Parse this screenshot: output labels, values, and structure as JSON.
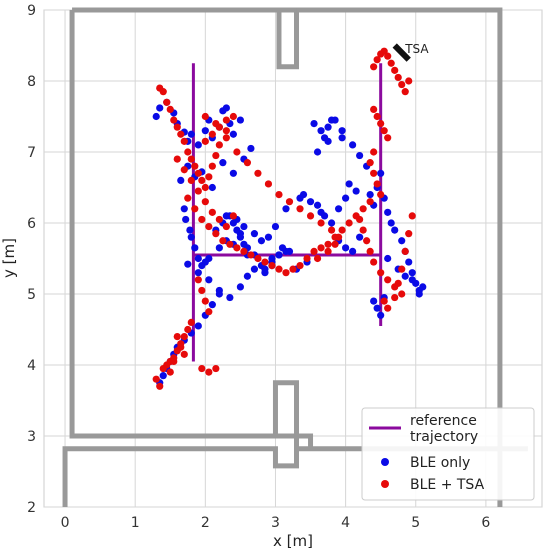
{
  "chart_data": {
    "type": "scatter",
    "title": "",
    "xlabel": "x [m]",
    "ylabel": "y [m]",
    "xlim": [
      -0.3,
      6.8
    ],
    "ylim": [
      2,
      9
    ],
    "xticks": [
      0,
      1,
      2,
      3,
      4,
      5,
      6
    ],
    "yticks": [
      2,
      3,
      4,
      5,
      6,
      7,
      8,
      9
    ],
    "grid": true,
    "legend_position": "bottom-right",
    "annotation": {
      "text": "TSA",
      "x": 4.85,
      "y": 8.45
    },
    "tsa_marker": {
      "x": [
        4.7,
        4.9
      ],
      "y": [
        8.5,
        8.3
      ]
    },
    "walls": [
      {
        "x": [
          0.1,
          0.1,
          3.0,
          3.0,
          3.3,
          3.3,
          3.0,
          3.0,
          0.1
        ],
        "y": [
          9.0,
          3.0,
          3.0,
          3.75,
          3.75,
          3.0,
          3.0,
          3.0,
          3.0
        ]
      },
      {
        "x": [
          0.1,
          3.05,
          3.05,
          3.3,
          3.3,
          3.05
        ],
        "y": [
          9.0,
          9.0,
          8.2,
          8.2,
          9.0,
          9.0
        ]
      },
      {
        "x": [
          3.3,
          6.2,
          6.2
        ],
        "y": [
          9.0,
          9.0,
          2.0
        ]
      },
      {
        "x": [
          0.0,
          0.0,
          3.0,
          3.0,
          3.3,
          3.3,
          3.5,
          3.5,
          3.3,
          3.3,
          6.6
        ],
        "y": [
          2.0,
          2.82,
          2.82,
          2.58,
          2.58,
          2.82,
          2.82,
          3.0,
          3.0,
          2.82,
          2.82
        ]
      }
    ],
    "series": [
      {
        "name": "reference trajectory",
        "kind": "line",
        "color": "#8B0A9E",
        "segments": [
          {
            "x": [
              1.83,
              1.83
            ],
            "y": [
              8.25,
              4.05
            ]
          },
          {
            "x": [
              1.83,
              4.5
            ],
            "y": [
              5.55,
              5.55
            ]
          },
          {
            "x": [
              4.5,
              4.5
            ],
            "y": [
              8.25,
              4.55
            ]
          }
        ]
      },
      {
        "name": "BLE only",
        "kind": "points",
        "color": "#0a0ae6",
        "x": [
          1.3,
          1.35,
          1.45,
          1.55,
          1.6,
          1.7,
          1.75,
          1.8,
          1.9,
          2.0,
          2.05,
          2.1,
          2.2,
          2.25,
          2.3,
          2.35,
          2.4,
          2.5,
          1.65,
          1.75,
          1.85,
          1.95,
          2.1,
          2.25,
          2.4,
          2.55,
          2.65,
          1.7,
          1.72,
          1.78,
          1.8,
          1.85,
          1.9,
          2.0,
          1.75,
          1.9,
          2.05,
          2.2,
          2.35,
          2.5,
          2.6,
          2.7,
          2.85,
          2.95,
          3.05,
          3.15,
          2.3,
          2.4,
          2.5,
          2.6,
          2.7,
          2.8,
          2.95,
          3.1,
          2.2,
          2.1,
          2.0,
          1.9,
          1.8,
          1.7,
          1.6,
          1.55,
          1.5,
          1.45,
          1.4,
          1.35,
          2.15,
          2.25,
          2.35,
          2.45,
          2.55,
          2.7,
          2.8,
          2.9,
          3.0,
          3.15,
          3.35,
          3.4,
          3.5,
          3.6,
          3.65,
          3.7,
          3.8,
          3.9,
          4.0,
          3.6,
          3.7,
          3.75,
          3.8,
          3.95,
          4.1,
          4.2,
          4.3,
          3.55,
          3.65,
          3.75,
          3.85,
          3.95,
          4.05,
          4.15,
          4.35,
          4.4,
          4.45,
          4.5,
          4.55,
          4.6,
          4.65,
          4.7,
          4.8,
          4.85,
          4.9,
          4.95,
          5.0,
          5.05,
          5.1,
          4.6,
          4.75,
          4.85,
          4.95,
          5.05,
          4.4,
          4.45,
          4.5,
          4.55,
          2.85,
          2.95,
          3.05,
          3.2,
          3.3,
          3.45,
          2.6,
          2.55,
          2.5,
          2.45,
          2.4,
          2.3,
          2.2,
          2.05,
          1.95,
          3.9,
          4.0,
          4.1,
          4.2
        ],
        "y": [
          7.5,
          7.62,
          7.7,
          7.55,
          7.4,
          7.28,
          7.15,
          7.25,
          7.1,
          7.3,
          7.45,
          7.2,
          7.35,
          7.58,
          7.62,
          7.4,
          7.25,
          7.45,
          6.6,
          6.8,
          6.65,
          6.72,
          6.5,
          6.85,
          6.7,
          6.9,
          7.05,
          6.2,
          6.05,
          5.9,
          5.8,
          5.65,
          5.5,
          5.45,
          5.42,
          5.3,
          5.2,
          5.05,
          4.95,
          5.1,
          5.25,
          5.35,
          5.3,
          5.45,
          5.55,
          5.6,
          5.75,
          5.7,
          5.85,
          5.65,
          5.55,
          5.4,
          5.5,
          5.65,
          5.0,
          4.85,
          4.7,
          4.55,
          4.45,
          4.35,
          4.25,
          4.15,
          4.05,
          3.95,
          3.85,
          3.75,
          5.9,
          6.0,
          6.1,
          6.05,
          5.95,
          5.85,
          5.75,
          5.8,
          5.95,
          6.2,
          6.35,
          6.4,
          6.3,
          6.25,
          6.15,
          6.1,
          6.0,
          6.2,
          6.35,
          7.0,
          7.2,
          7.35,
          7.45,
          7.3,
          7.1,
          6.95,
          6.8,
          7.4,
          7.3,
          7.15,
          7.45,
          7.2,
          6.55,
          6.45,
          6.4,
          6.25,
          6.5,
          6.7,
          6.35,
          6.15,
          6.0,
          5.9,
          5.75,
          5.6,
          5.45,
          5.3,
          5.15,
          5.05,
          5.1,
          5.5,
          5.35,
          5.25,
          5.2,
          5.0,
          4.9,
          4.8,
          4.7,
          4.95,
          5.35,
          5.4,
          5.55,
          5.6,
          5.35,
          5.45,
          5.55,
          5.7,
          5.8,
          5.9,
          6.0,
          6.1,
          5.65,
          5.5,
          5.4,
          5.75,
          5.65,
          5.6,
          5.8
        ],
        "y_note": ""
      },
      {
        "name": "BLE + TSA",
        "kind": "points",
        "color": "#e60a0a",
        "x": [
          1.35,
          1.4,
          1.45,
          1.5,
          1.55,
          1.6,
          1.65,
          1.7,
          1.75,
          1.8,
          1.85,
          1.9,
          1.95,
          2.0,
          2.05,
          2.1,
          2.15,
          2.2,
          2.3,
          1.6,
          1.7,
          1.8,
          1.9,
          2.0,
          2.1,
          2.2,
          2.3,
          2.4,
          1.75,
          1.85,
          1.95,
          2.05,
          2.15,
          2.25,
          2.35,
          2.45,
          2.55,
          2.65,
          2.75,
          2.85,
          2.95,
          3.05,
          3.15,
          3.25,
          3.35,
          3.45,
          3.55,
          3.65,
          3.75,
          3.85,
          3.95,
          4.05,
          4.15,
          4.25,
          4.35,
          1.9,
          1.95,
          2.0,
          2.05,
          1.8,
          1.75,
          1.7,
          1.65,
          1.6,
          1.55,
          1.5,
          1.45,
          1.4,
          1.3,
          1.35,
          1.95,
          2.05,
          2.15,
          4.4,
          4.45,
          4.5,
          4.55,
          4.6,
          4.65,
          4.7,
          4.75,
          4.8,
          4.85,
          4.9,
          4.4,
          4.45,
          4.5,
          4.55,
          4.6,
          4.4,
          4.35,
          4.4,
          4.45,
          4.5,
          4.2,
          4.25,
          4.3,
          4.35,
          4.4,
          4.5,
          4.6,
          4.7,
          4.8,
          4.55,
          4.6,
          4.7,
          4.75,
          4.8,
          4.85,
          4.9,
          4.95,
          2.0,
          2.15,
          2.3,
          2.45,
          2.6,
          2.75,
          2.9,
          3.05,
          3.2,
          3.35,
          3.5,
          3.65,
          3.8,
          3.9,
          3.85,
          3.75,
          3.6,
          2.0,
          2.1,
          2.2,
          2.3,
          2.4,
          1.6,
          1.65,
          1.7,
          1.55,
          1.5
        ],
        "y": [
          7.9,
          7.85,
          7.7,
          7.6,
          7.45,
          7.35,
          7.25,
          7.15,
          7.0,
          6.9,
          6.8,
          6.7,
          6.6,
          6.5,
          6.65,
          6.8,
          6.95,
          7.1,
          7.3,
          6.9,
          6.75,
          6.6,
          6.45,
          6.3,
          6.15,
          6.05,
          5.95,
          6.1,
          6.35,
          6.2,
          6.05,
          5.95,
          5.85,
          5.75,
          5.7,
          5.65,
          5.6,
          5.55,
          5.5,
          5.45,
          5.4,
          5.35,
          5.3,
          5.35,
          5.4,
          5.5,
          5.6,
          5.65,
          5.7,
          5.8,
          5.9,
          6.0,
          6.1,
          6.2,
          6.3,
          5.2,
          5.05,
          4.9,
          4.75,
          4.6,
          4.5,
          4.4,
          4.3,
          4.2,
          4.1,
          4.05,
          4.0,
          3.95,
          3.8,
          3.7,
          3.95,
          3.9,
          3.95,
          8.2,
          8.3,
          8.38,
          8.42,
          8.35,
          8.25,
          8.15,
          8.05,
          7.95,
          7.85,
          8.0,
          7.6,
          7.5,
          7.4,
          7.3,
          7.2,
          7.0,
          6.85,
          6.7,
          6.55,
          6.4,
          6.05,
          5.9,
          5.75,
          5.6,
          5.45,
          5.3,
          5.2,
          5.1,
          5.0,
          4.9,
          4.8,
          4.95,
          5.15,
          5.35,
          5.6,
          5.85,
          6.1,
          7.5,
          7.4,
          7.2,
          7.0,
          6.85,
          6.7,
          6.55,
          6.4,
          6.3,
          6.2,
          6.1,
          6.0,
          5.9,
          5.8,
          5.7,
          5.6,
          5.5,
          7.15,
          7.25,
          7.35,
          7.45,
          7.5,
          4.4,
          4.25,
          4.15,
          4.05,
          3.9
        ],
        "y_note": ""
      }
    ],
    "legend_entries": [
      {
        "label_line1": "reference",
        "label_line2": "trajectory",
        "kind": "line",
        "color": "#8B0A9E"
      },
      {
        "label_line1": "BLE only",
        "label_line2": "",
        "kind": "point",
        "color": "#0a0ae6"
      },
      {
        "label_line1": "BLE + TSA",
        "label_line2": "",
        "kind": "point",
        "color": "#e60a0a"
      }
    ],
    "colors": {
      "wall": "#999999",
      "grid": "#d6d6d6",
      "frame": "#cccccc",
      "tsa_marker": "#111111"
    }
  }
}
